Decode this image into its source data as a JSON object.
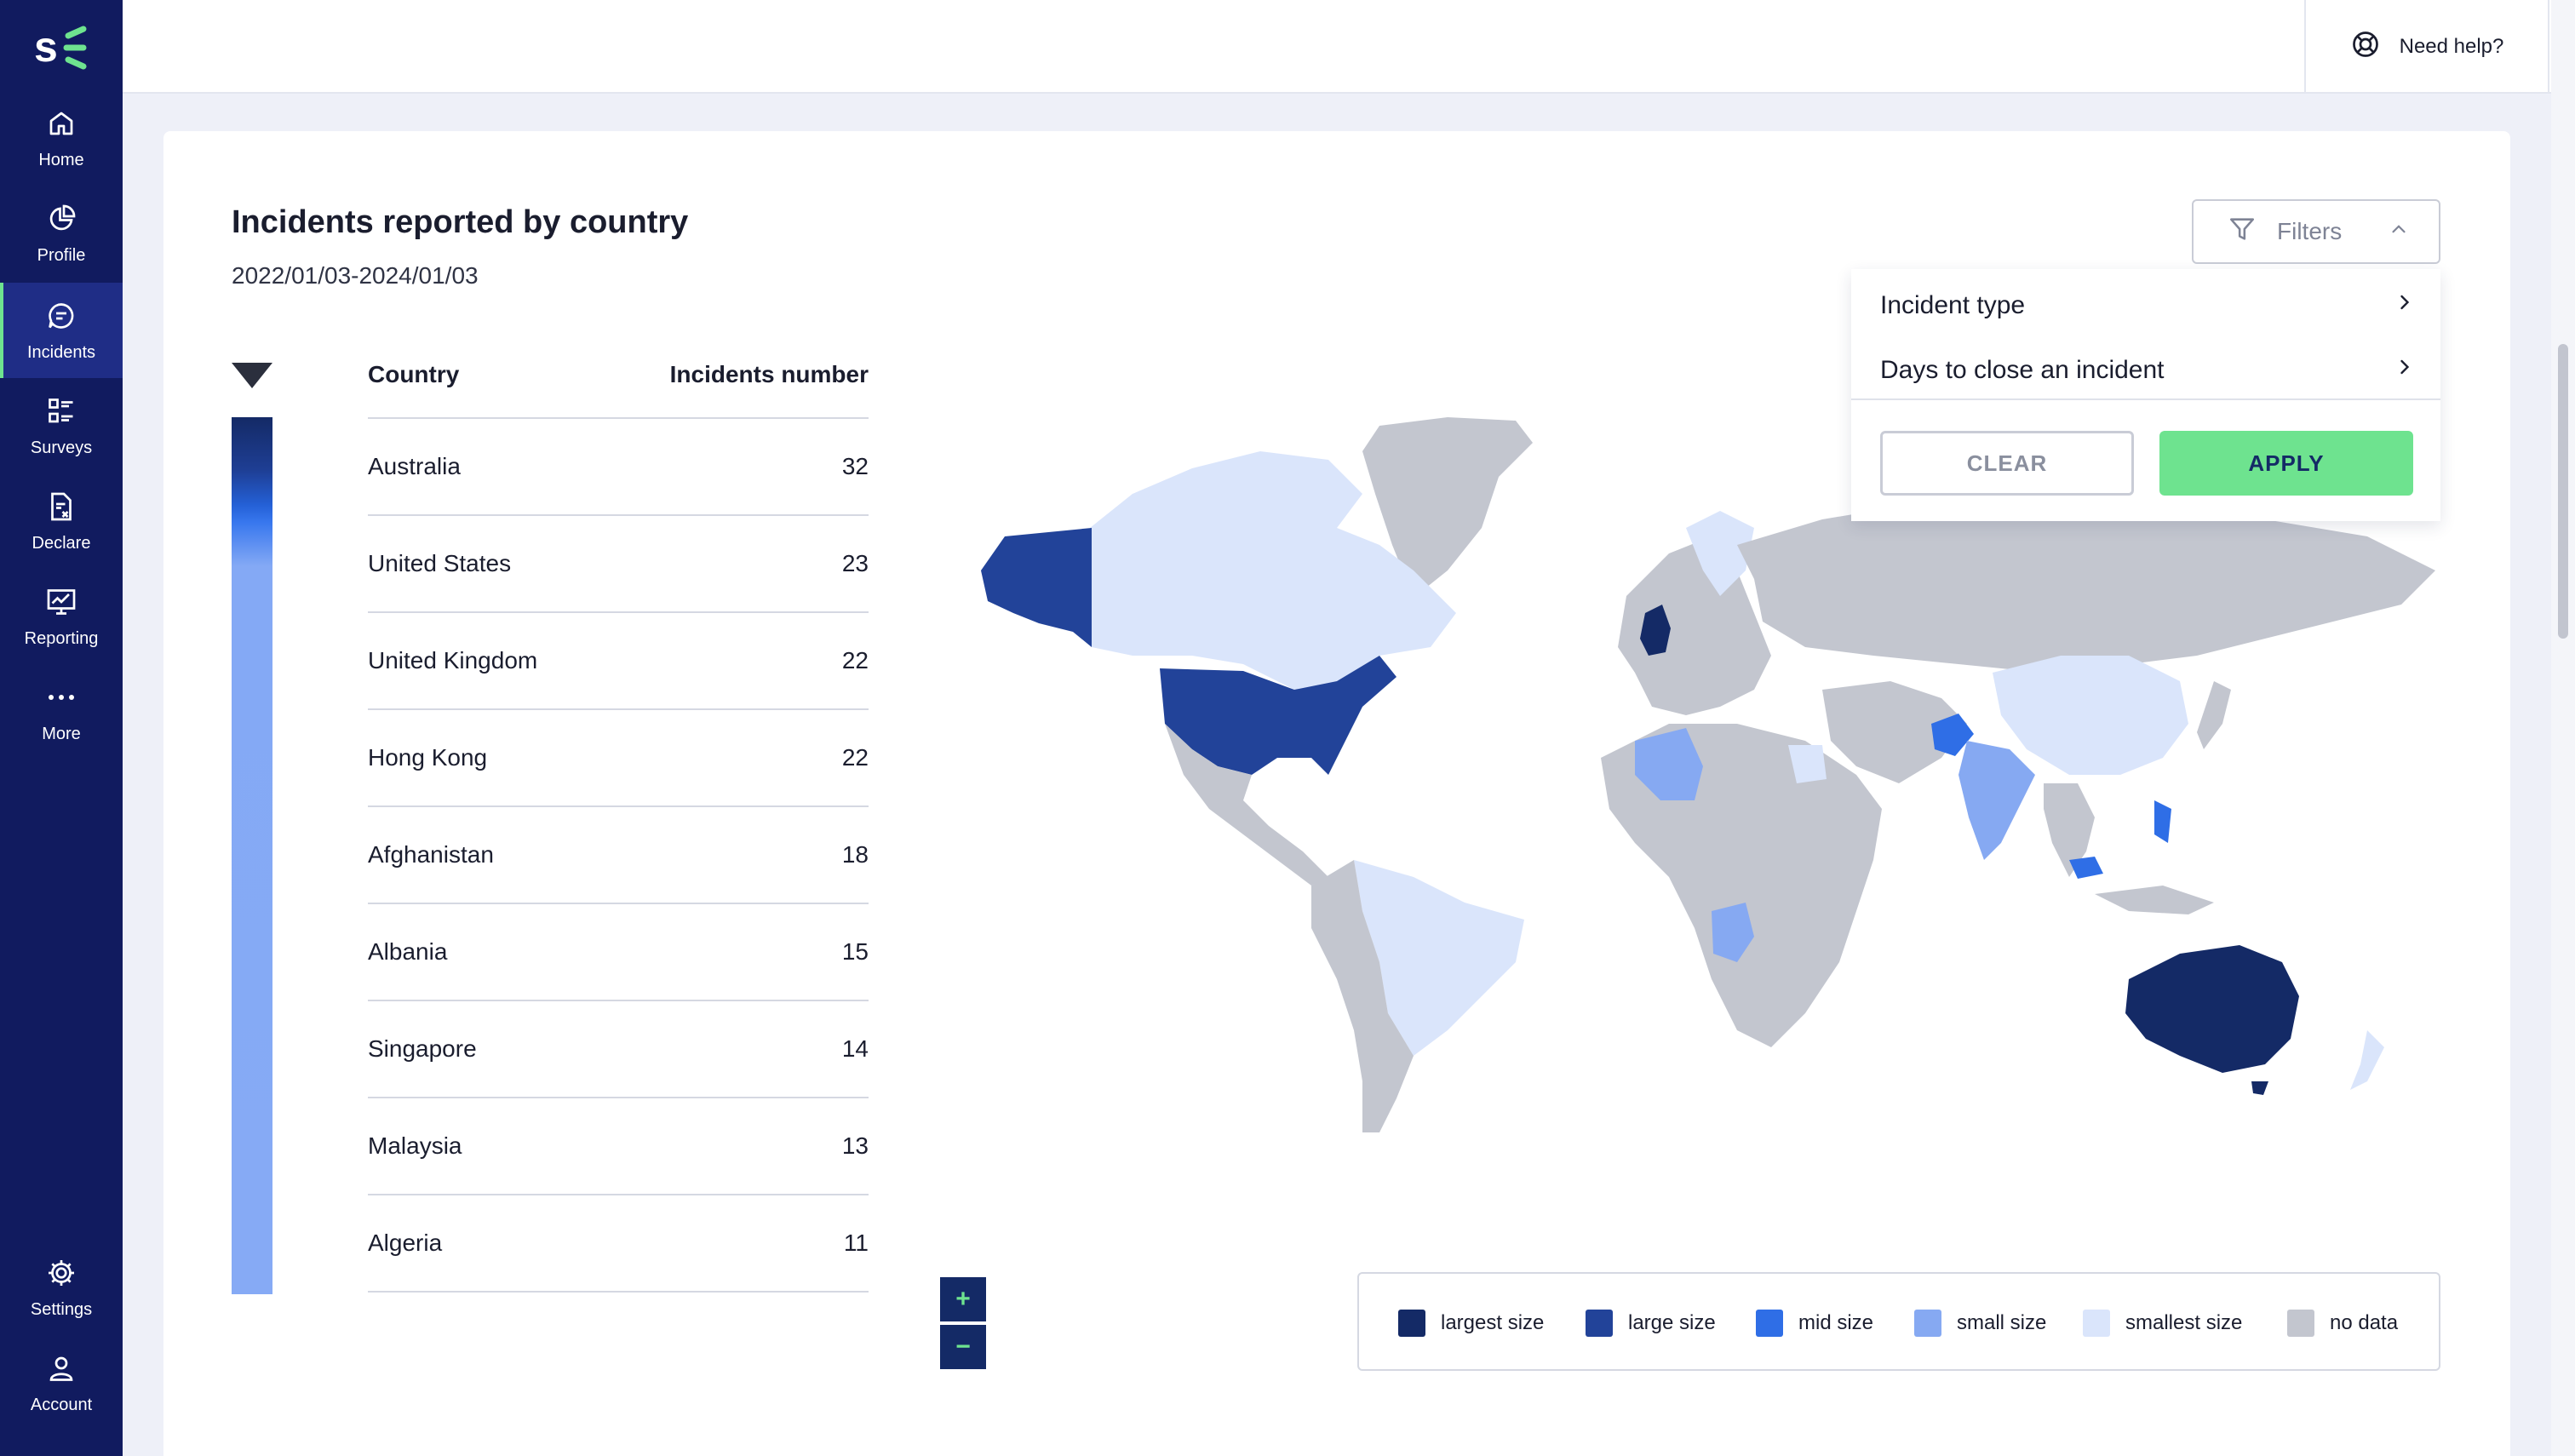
{
  "app": {
    "logo_name": "logo",
    "colors": {
      "sidebar_bg": "#111b5f",
      "accent_green": "#6ee38f",
      "navy": "#142a66"
    }
  },
  "sidebar": {
    "top_items": [
      {
        "label": "Home",
        "icon": "home-icon"
      },
      {
        "label": "Profile",
        "icon": "pie-chart-icon"
      },
      {
        "label": "Incidents",
        "icon": "chat-bubble-icon",
        "active": true
      },
      {
        "label": "Surveys",
        "icon": "survey-list-icon"
      },
      {
        "label": "Declare",
        "icon": "document-x-icon"
      },
      {
        "label": "Reporting",
        "icon": "monitor-chart-icon"
      },
      {
        "label": "More",
        "icon": "more-dots-icon"
      }
    ],
    "bottom_items": [
      {
        "label": "Settings",
        "icon": "gear-icon"
      },
      {
        "label": "Account",
        "icon": "user-icon"
      }
    ]
  },
  "topbar": {
    "help_label": "Need help?",
    "help_icon": "lifebuoy-icon",
    "power_icon": "power-icon"
  },
  "report": {
    "title": "Incidents reported by country",
    "date_range": "2022/01/03-2024/01/03",
    "table": {
      "headers": {
        "country": "Country",
        "incidents": "Incidents number"
      },
      "rows": [
        {
          "country": "Australia",
          "incidents": "32"
        },
        {
          "country": "United States",
          "incidents": "23"
        },
        {
          "country": "United Kingdom",
          "incidents": "22"
        },
        {
          "country": "Hong Kong",
          "incidents": "22"
        },
        {
          "country": "Afghanistan",
          "incidents": "18"
        },
        {
          "country": "Albania",
          "incidents": "15"
        },
        {
          "country": "Singapore",
          "incidents": "14"
        },
        {
          "country": "Malaysia",
          "incidents": "13"
        },
        {
          "country": "Algeria",
          "incidents": "11"
        }
      ]
    }
  },
  "map": {
    "zoom_in": "+",
    "zoom_out": "−",
    "legend": [
      {
        "label": "largest size",
        "color": "#142a66"
      },
      {
        "label": "large size",
        "color": "#224399"
      },
      {
        "label": "mid size",
        "color": "#2f6ee6"
      },
      {
        "label": "small size",
        "color": "#86a9f2"
      },
      {
        "label": "smallest size",
        "color": "#dae5fb"
      },
      {
        "label": "no data",
        "color": "#c3c6cf"
      }
    ]
  },
  "filters": {
    "button_label": "Filters",
    "options": [
      "Incident type",
      "Days to close an incident"
    ],
    "clear_label": "CLEAR",
    "apply_label": "APPLY"
  }
}
